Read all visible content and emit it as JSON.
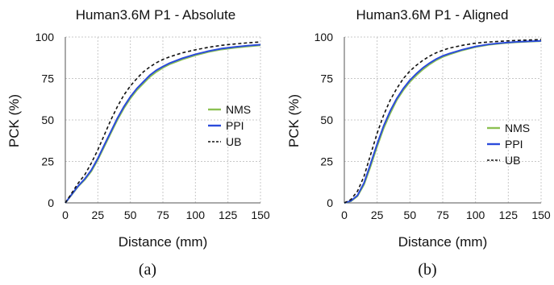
{
  "chart_data": [
    {
      "type": "line",
      "title": "Human3.6M P1 - Absolute",
      "xlabel": "Distance (mm)",
      "ylabel": "PCK (%)",
      "sublabel": "(a)",
      "xlim": [
        0,
        150
      ],
      "ylim": [
        0,
        100
      ],
      "xticks": [
        "0",
        "25",
        "50",
        "75",
        "100",
        "125",
        "150"
      ],
      "yticks": [
        "0",
        "25",
        "50",
        "75",
        "100"
      ],
      "grid": true,
      "legend_position": "right-middle",
      "x": [
        0,
        5,
        10,
        15,
        20,
        25,
        30,
        35,
        40,
        45,
        50,
        55,
        60,
        65,
        70,
        75,
        80,
        90,
        100,
        110,
        120,
        130,
        140,
        150
      ],
      "series": [
        {
          "name": "NMS",
          "color": "#8cc152",
          "style": "solid",
          "values": [
            0,
            5,
            10,
            14,
            19,
            26,
            34,
            42,
            50,
            57,
            63,
            68,
            72,
            76,
            79,
            81.5,
            83.5,
            86.5,
            89,
            91,
            92.5,
            93.5,
            94.3,
            95
          ]
        },
        {
          "name": "PPI",
          "color": "#2b4bdb",
          "style": "solid",
          "values": [
            0,
            5.2,
            10.3,
            14.5,
            19.8,
            26.8,
            35,
            43,
            51,
            58,
            64,
            69,
            73,
            77,
            80,
            82.2,
            84.2,
            87.2,
            89.6,
            91.5,
            93,
            94,
            94.8,
            95.4
          ]
        },
        {
          "name": "UB",
          "color": "#111111",
          "style": "dashed",
          "values": [
            0,
            6,
            12,
            17,
            24,
            32,
            41,
            50,
            58,
            65,
            70.5,
            75,
            79,
            82,
            84.5,
            86.5,
            88,
            90.5,
            92.3,
            93.8,
            95,
            95.8,
            96.5,
            97
          ]
        }
      ]
    },
    {
      "type": "line",
      "title": "Human3.6M P1 - Aligned",
      "xlabel": "Distance (mm)",
      "ylabel": "PCK (%)",
      "sublabel": "(b)",
      "xlim": [
        0,
        150
      ],
      "ylim": [
        0,
        100
      ],
      "xticks": [
        "0",
        "25",
        "50",
        "75",
        "100",
        "125",
        "150"
      ],
      "yticks": [
        "0",
        "25",
        "50",
        "75",
        "100"
      ],
      "grid": true,
      "legend_position": "bottom-right",
      "x": [
        0,
        5,
        10,
        15,
        20,
        25,
        30,
        35,
        40,
        45,
        50,
        55,
        60,
        65,
        70,
        75,
        80,
        90,
        100,
        110,
        120,
        130,
        140,
        150
      ],
      "series": [
        {
          "name": "NMS",
          "color": "#8cc152",
          "style": "solid",
          "values": [
            0,
            1,
            4,
            11,
            22,
            34,
            45,
            54,
            62,
            68,
            73,
            77,
            80.5,
            83.5,
            86,
            88,
            89.5,
            92,
            94,
            95.3,
            96.2,
            96.8,
            97.2,
            97.5
          ]
        },
        {
          "name": "PPI",
          "color": "#2b4bdb",
          "style": "solid",
          "values": [
            0,
            1.2,
            4.5,
            12,
            23.5,
            35.5,
            46.5,
            55.5,
            63,
            69,
            74,
            78,
            81.5,
            84.3,
            86.7,
            88.6,
            90,
            92.4,
            94.3,
            95.6,
            96.4,
            97,
            97.4,
            97.7
          ]
        },
        {
          "name": "UB",
          "color": "#111111",
          "style": "dashed",
          "values": [
            0,
            2,
            7,
            16,
            29,
            42,
            53,
            62,
            69,
            75,
            79.5,
            83,
            86,
            88.5,
            90.5,
            92,
            93.3,
            95,
            96.3,
            97,
            97.5,
            97.9,
            98.2,
            98.5
          ]
        }
      ]
    }
  ]
}
